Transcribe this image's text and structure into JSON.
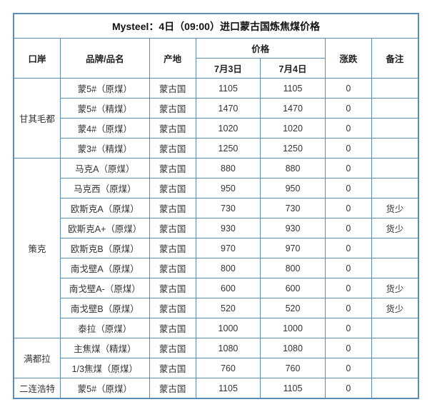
{
  "title": "Mysteel：4日（09:00）进口蒙古国炼焦煤价格",
  "headers": {
    "port": "口岸",
    "brand": "品牌/品名",
    "origin": "产地",
    "price_group": "价格",
    "date1": "7月3日",
    "date2": "7月4日",
    "change": "涨跌",
    "note": "备注"
  },
  "colors": {
    "border": "#5b8db8",
    "text": "#333333",
    "background": "#ffffff"
  },
  "typography": {
    "title_fontsize": 14,
    "header_fontsize": 12.5,
    "cell_fontsize": 12.5,
    "title_weight": "bold",
    "header_weight": "bold"
  },
  "rows": [
    {
      "port": "甘其毛都",
      "port_rowspan": 4,
      "brand": "蒙5#（原煤）",
      "origin": "蒙古国",
      "p1": "1105",
      "p2": "1105",
      "chg": "0",
      "note": ""
    },
    {
      "brand": "蒙5#（精煤）",
      "origin": "蒙古国",
      "p1": "1470",
      "p2": "1470",
      "chg": "0",
      "note": ""
    },
    {
      "brand": "蒙4#（原煤）",
      "origin": "蒙古国",
      "p1": "1020",
      "p2": "1020",
      "chg": "0",
      "note": ""
    },
    {
      "brand": "蒙3#（精煤）",
      "origin": "蒙古国",
      "p1": "1250",
      "p2": "1250",
      "chg": "0",
      "note": ""
    },
    {
      "port": "策克",
      "port_rowspan": 9,
      "brand": "马克A（原煤）",
      "origin": "蒙古国",
      "p1": "880",
      "p2": "880",
      "chg": "0",
      "note": ""
    },
    {
      "brand": "马克西（原煤）",
      "origin": "蒙古国",
      "p1": "950",
      "p2": "950",
      "chg": "0",
      "note": ""
    },
    {
      "brand": "欧斯克A（原煤）",
      "origin": "蒙古国",
      "p1": "730",
      "p2": "730",
      "chg": "0",
      "note": "货少"
    },
    {
      "brand": "欧斯克A+（原煤）",
      "origin": "蒙古国",
      "p1": "930",
      "p2": "930",
      "chg": "0",
      "note": "货少"
    },
    {
      "brand": "欧斯克B（原煤）",
      "origin": "蒙古国",
      "p1": "970",
      "p2": "970",
      "chg": "0",
      "note": ""
    },
    {
      "brand": "南戈壁A（原煤）",
      "origin": "蒙古国",
      "p1": "800",
      "p2": "800",
      "chg": "0",
      "note": ""
    },
    {
      "brand": "南戈壁A-（原煤）",
      "origin": "蒙古国",
      "p1": "600",
      "p2": "600",
      "chg": "0",
      "note": "货少"
    },
    {
      "brand": "南戈壁B（原煤）",
      "origin": "蒙古国",
      "p1": "520",
      "p2": "520",
      "chg": "0",
      "note": "货少"
    },
    {
      "brand": "泰拉（原煤）",
      "origin": "蒙古国",
      "p1": "1000",
      "p2": "1000",
      "chg": "0",
      "note": ""
    },
    {
      "port": "满都拉",
      "port_rowspan": 2,
      "brand": "主焦煤（精煤）",
      "origin": "蒙古国",
      "p1": "1080",
      "p2": "1080",
      "chg": "0",
      "note": ""
    },
    {
      "brand": "1/3焦煤（原煤）",
      "origin": "蒙古国",
      "p1": "760",
      "p2": "760",
      "chg": "0",
      "note": ""
    },
    {
      "port": "二连浩特",
      "port_rowspan": 1,
      "brand": "蒙5#（原煤）",
      "origin": "蒙古国",
      "p1": "1105",
      "p2": "1105",
      "chg": "0",
      "note": ""
    }
  ]
}
